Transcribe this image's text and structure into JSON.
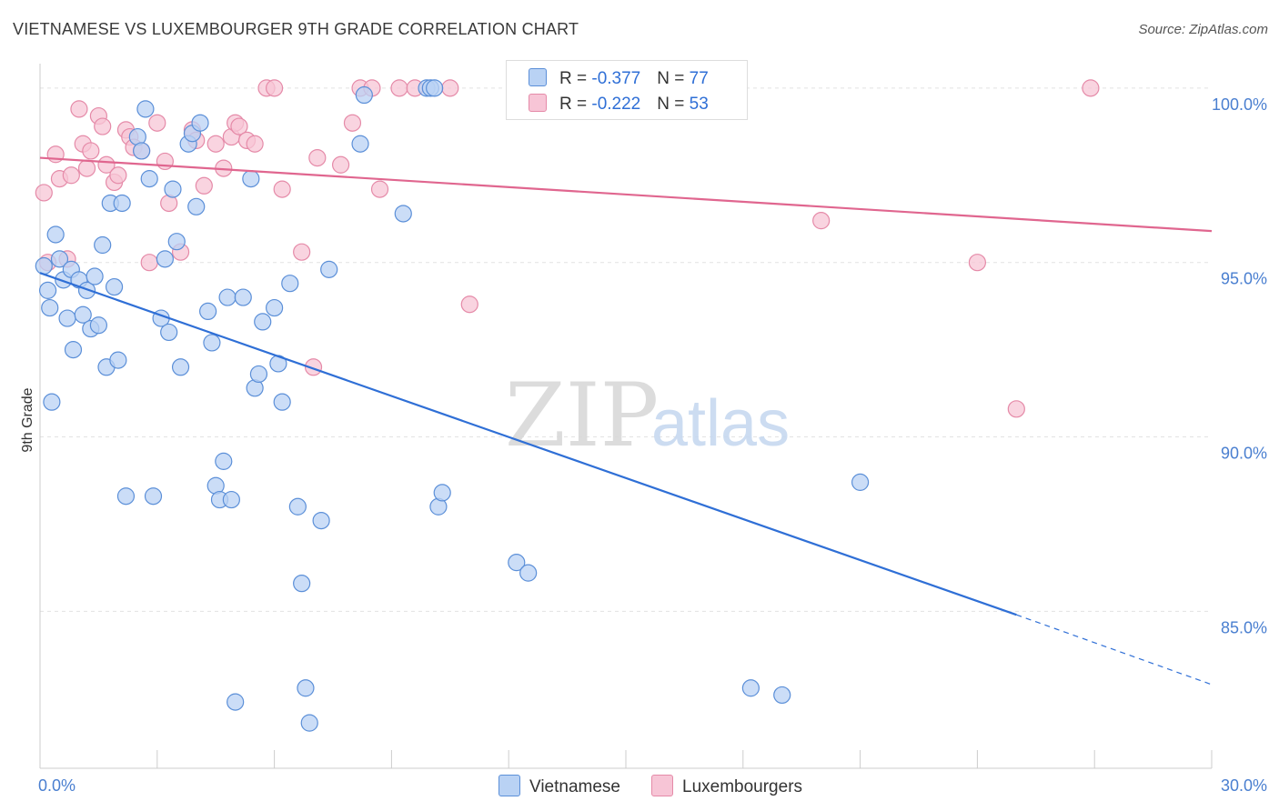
{
  "title": "VIETNAMESE VS LUXEMBOURGER 9TH GRADE CORRELATION CHART",
  "source": "Source: ZipAtlas.com",
  "watermark": {
    "zip": "ZIP",
    "atlas": "atlas"
  },
  "colors": {
    "vietnamese_fill": "#b9d2f4",
    "vietnamese_stroke": "#5b8fd8",
    "vietnamese_line": "#2f6fd6",
    "luxembourger_fill": "#f7c5d6",
    "luxembourger_stroke": "#e58aa8",
    "luxembourger_line": "#e0668f",
    "grid": "#e2e2e2",
    "tick_label": "#4a7fd0"
  },
  "legend": {
    "rows": [
      {
        "r_label": "R = ",
        "r_value": "-0.377",
        "n_label": "N = ",
        "n_value": "77",
        "series": "vietnamese"
      },
      {
        "r_label": "R = ",
        "r_value": "-0.222",
        "n_label": "N = ",
        "n_value": "53",
        "series": "luxembourger"
      }
    ]
  },
  "bottom_legend": [
    "Vietnamese",
    "Luxembourgers"
  ],
  "chart_data": {
    "type": "scatter",
    "title": "VIETNAMESE VS LUXEMBOURGER 9TH GRADE CORRELATION CHART",
    "xlabel": "",
    "ylabel": "9th Grade",
    "xlim": [
      0,
      30
    ],
    "ylim": [
      80.5,
      100.7
    ],
    "x_tick_labels": [
      {
        "value": 0,
        "label": "0.0%"
      },
      {
        "value": 30,
        "label": "30.0%"
      }
    ],
    "y_tick_labels": [
      {
        "value": 100,
        "label": "100.0%"
      },
      {
        "value": 95,
        "label": "95.0%"
      },
      {
        "value": 90,
        "label": "90.0%"
      },
      {
        "value": 85,
        "label": "85.0%"
      }
    ],
    "grid": true,
    "legend_position": "top-center",
    "series": [
      {
        "name": "Vietnamese",
        "color": "#5b8fd8",
        "points": [
          [
            0.1,
            94.9
          ],
          [
            0.2,
            94.2
          ],
          [
            0.25,
            93.7
          ],
          [
            0.4,
            95.8
          ],
          [
            0.5,
            95.1
          ],
          [
            0.6,
            94.5
          ],
          [
            0.7,
            93.4
          ],
          [
            0.8,
            94.8
          ],
          [
            0.85,
            92.5
          ],
          [
            1.0,
            94.5
          ],
          [
            1.1,
            93.5
          ],
          [
            1.2,
            94.2
          ],
          [
            1.3,
            93.1
          ],
          [
            1.4,
            94.6
          ],
          [
            1.5,
            93.2
          ],
          [
            1.6,
            95.5
          ],
          [
            1.7,
            92.0
          ],
          [
            1.8,
            96.7
          ],
          [
            2.0,
            92.2
          ],
          [
            2.1,
            96.7
          ],
          [
            2.2,
            88.3
          ],
          [
            2.5,
            98.6
          ],
          [
            2.6,
            98.2
          ],
          [
            2.7,
            99.4
          ],
          [
            2.8,
            97.4
          ],
          [
            2.9,
            88.3
          ],
          [
            3.1,
            93.4
          ],
          [
            3.2,
            95.1
          ],
          [
            3.3,
            93.0
          ],
          [
            3.4,
            97.1
          ],
          [
            3.5,
            95.6
          ],
          [
            3.6,
            92.0
          ],
          [
            3.8,
            98.4
          ],
          [
            3.9,
            98.7
          ],
          [
            4.0,
            96.6
          ],
          [
            4.1,
            99.0
          ],
          [
            4.3,
            93.6
          ],
          [
            4.4,
            92.7
          ],
          [
            4.5,
            88.6
          ],
          [
            4.6,
            88.2
          ],
          [
            4.7,
            89.3
          ],
          [
            4.8,
            94.0
          ],
          [
            5.0,
            82.4
          ],
          [
            5.2,
            94.0
          ],
          [
            5.4,
            97.4
          ],
          [
            5.5,
            91.4
          ],
          [
            5.6,
            91.8
          ],
          [
            5.7,
            93.3
          ],
          [
            6.0,
            93.7
          ],
          [
            6.1,
            92.1
          ],
          [
            6.2,
            91.0
          ],
          [
            6.4,
            94.4
          ],
          [
            6.6,
            88.0
          ],
          [
            6.7,
            85.8
          ],
          [
            6.8,
            82.8
          ],
          [
            6.9,
            81.8
          ],
          [
            7.2,
            87.6
          ],
          [
            7.4,
            94.8
          ],
          [
            8.2,
            98.4
          ],
          [
            9.3,
            96.4
          ],
          [
            9.9,
            100.0
          ],
          [
            10.0,
            100.0
          ],
          [
            10.1,
            100.0
          ],
          [
            10.2,
            88.0
          ],
          [
            10.3,
            88.4
          ],
          [
            12.2,
            86.4
          ],
          [
            12.5,
            86.1
          ],
          [
            17.0,
            100.0
          ],
          [
            17.1,
            100.0
          ],
          [
            17.2,
            100.0
          ],
          [
            18.2,
            82.8
          ],
          [
            19.0,
            82.6
          ],
          [
            21.0,
            88.7
          ],
          [
            8.3,
            99.8
          ],
          [
            0.3,
            91.0
          ],
          [
            1.9,
            94.3
          ],
          [
            4.9,
            88.2
          ]
        ]
      },
      {
        "name": "Luxembourgers",
        "color": "#e58aa8",
        "points": [
          [
            0.1,
            97.0
          ],
          [
            0.2,
            95.0
          ],
          [
            0.4,
            98.1
          ],
          [
            0.5,
            97.4
          ],
          [
            0.7,
            95.1
          ],
          [
            0.8,
            97.5
          ],
          [
            1.0,
            99.4
          ],
          [
            1.1,
            98.4
          ],
          [
            1.2,
            97.7
          ],
          [
            1.3,
            98.2
          ],
          [
            1.5,
            99.2
          ],
          [
            1.6,
            98.9
          ],
          [
            1.7,
            97.8
          ],
          [
            1.9,
            97.3
          ],
          [
            2.0,
            97.5
          ],
          [
            2.2,
            98.8
          ],
          [
            2.3,
            98.6
          ],
          [
            2.4,
            98.3
          ],
          [
            2.6,
            98.2
          ],
          [
            2.8,
            95.0
          ],
          [
            3.0,
            99.0
          ],
          [
            3.2,
            97.9
          ],
          [
            3.3,
            96.7
          ],
          [
            3.6,
            95.3
          ],
          [
            3.9,
            98.8
          ],
          [
            4.0,
            98.5
          ],
          [
            4.2,
            97.2
          ],
          [
            4.5,
            98.4
          ],
          [
            4.7,
            97.7
          ],
          [
            4.9,
            98.6
          ],
          [
            5.0,
            99.0
          ],
          [
            5.1,
            98.9
          ],
          [
            5.3,
            98.5
          ],
          [
            5.5,
            98.4
          ],
          [
            5.8,
            100.0
          ],
          [
            6.0,
            100.0
          ],
          [
            6.2,
            97.1
          ],
          [
            6.7,
            95.3
          ],
          [
            7.0,
            92.0
          ],
          [
            7.1,
            98.0
          ],
          [
            7.7,
            97.8
          ],
          [
            8.0,
            99.0
          ],
          [
            8.2,
            100.0
          ],
          [
            8.5,
            100.0
          ],
          [
            8.7,
            97.1
          ],
          [
            9.2,
            100.0
          ],
          [
            9.6,
            100.0
          ],
          [
            10.5,
            100.0
          ],
          [
            11.0,
            93.8
          ],
          [
            20.0,
            96.2
          ],
          [
            24.0,
            95.0
          ],
          [
            25.0,
            90.8
          ],
          [
            26.9,
            100.0
          ]
        ]
      }
    ],
    "trend_lines": [
      {
        "series": "Vietnamese",
        "x": [
          0,
          25
        ],
        "y": [
          94.7,
          84.9
        ],
        "dashed_extension": {
          "x": [
            25,
            30
          ],
          "y": [
            84.9,
            82.9
          ]
        }
      },
      {
        "series": "Luxembourgers",
        "x": [
          0,
          30
        ],
        "y": [
          98.0,
          95.9
        ]
      }
    ]
  }
}
